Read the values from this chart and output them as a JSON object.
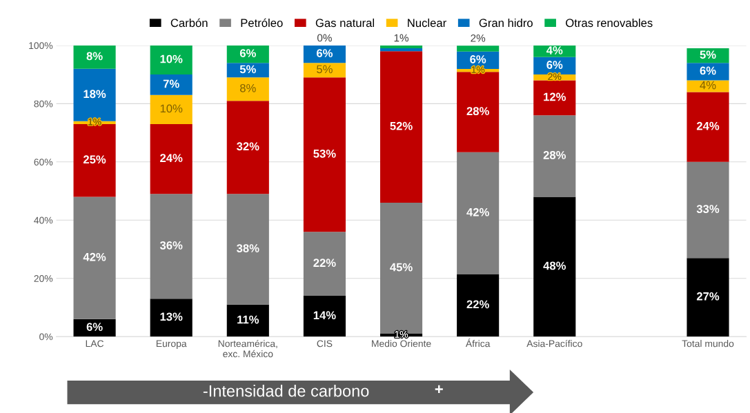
{
  "chart_data": {
    "type": "bar",
    "stacked": true,
    "categories": [
      "LAC",
      "Europa",
      "Norteamérica,\nexc. México",
      "CIS",
      "Medio Oriente",
      "África",
      "Asia-Pacífico",
      null,
      "Total mundo"
    ],
    "series": [
      {
        "name": "Carbón",
        "color": "#000000",
        "values": [
          6,
          13,
          11,
          14,
          1,
          21.5,
          48,
          null,
          27
        ],
        "value_labels": [
          "6%",
          "13%",
          "11%",
          "14%",
          "1%",
          "22%",
          "48%",
          null,
          "27%"
        ]
      },
      {
        "name": "Petróleo",
        "color": "#808080",
        "values": [
          42,
          36,
          38,
          22,
          45,
          41.8,
          28,
          null,
          33
        ],
        "value_labels": [
          "42%",
          "36%",
          "38%",
          "22%",
          "45%",
          "42%",
          "28%",
          null,
          "33%"
        ]
      },
      {
        "name": "Gas natural",
        "color": "#c00000",
        "values": [
          25,
          24,
          32,
          53,
          52,
          27.6,
          12,
          null,
          24
        ],
        "value_labels": [
          "25%",
          "24%",
          "32%",
          "53%",
          "52%",
          "28%",
          "12%",
          null,
          "24%"
        ]
      },
      {
        "name": "Nuclear",
        "color": "#ffc000",
        "values": [
          1,
          10,
          8,
          5,
          0,
          1,
          2,
          null,
          4
        ],
        "value_labels": [
          "1%",
          "10%",
          "8%",
          "5%",
          null,
          "1%",
          "2%",
          null,
          "4%"
        ]
      },
      {
        "name": "Gran hidro",
        "color": "#0070c0",
        "values": [
          18,
          7,
          5,
          6,
          1,
          6,
          6,
          null,
          6
        ],
        "value_labels": [
          "18%",
          "7%",
          "5%",
          "6%",
          null,
          "6%",
          "6%",
          null,
          "6%"
        ]
      },
      {
        "name": "Otras renovables",
        "color": "#00b050",
        "values": [
          8,
          10,
          6,
          0,
          1,
          2,
          4,
          null,
          5
        ],
        "value_labels": [
          "8%",
          "10%",
          "6%",
          "0%",
          "1%",
          "2%",
          "4%",
          null,
          "5%"
        ]
      }
    ],
    "ylim": [
      0,
      100
    ],
    "yticks": [
      {
        "value": 0,
        "label": "0%"
      },
      {
        "value": 20,
        "label": "20%"
      },
      {
        "value": 40,
        "label": "40%"
      },
      {
        "value": 60,
        "label": "60%"
      },
      {
        "value": 80,
        "label": "80%"
      },
      {
        "value": 100,
        "label": "100%"
      }
    ],
    "grid": "y",
    "legend": "top",
    "annotations": [
      "-Intensidad de carbono",
      "+"
    ]
  }
}
